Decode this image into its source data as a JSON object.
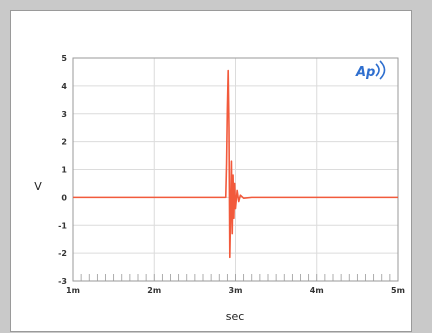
{
  "chart_data": {
    "type": "line",
    "title": "",
    "xlabel": "sec",
    "ylabel": "V",
    "xlim": [
      0.001,
      0.005
    ],
    "ylim": [
      -3,
      5
    ],
    "x_ticks": [
      {
        "value": 0.001,
        "label": "1m"
      },
      {
        "value": 0.002,
        "label": "2m"
      },
      {
        "value": 0.003,
        "label": "3m"
      },
      {
        "value": 0.004,
        "label": "4m"
      },
      {
        "value": 0.005,
        "label": "5m"
      }
    ],
    "y_ticks": [
      {
        "value": 5,
        "label": "5"
      },
      {
        "value": 4,
        "label": "4"
      },
      {
        "value": 3,
        "label": "3"
      },
      {
        "value": 2,
        "label": "2"
      },
      {
        "value": 1,
        "label": "1"
      },
      {
        "value": 0,
        "label": "0"
      },
      {
        "value": -1,
        "label": "-1"
      },
      {
        "value": -2,
        "label": "-2"
      },
      {
        "value": -3,
        "label": "-3"
      }
    ],
    "grid": true,
    "logo": "Ap",
    "colors": {
      "series": "#f25a3c",
      "grid": "#dcdcdc",
      "axis": "#9a9a9a",
      "logo": "#2f6fcf"
    },
    "series": [
      {
        "x": [
          0.001,
          0.0028,
          0.00288,
          0.00289,
          0.0029,
          0.00291,
          0.00292,
          0.00293,
          0.00294,
          0.00295,
          0.00296,
          0.00297,
          0.00298,
          0.00299,
          0.003,
          0.00302,
          0.00304,
          0.00306,
          0.0031,
          0.0032,
          0.005
        ],
        "y": [
          0,
          0,
          0,
          1.2,
          3.2,
          4.55,
          2.5,
          -2.15,
          -0.6,
          1.3,
          -1.3,
          0.8,
          -0.75,
          0.5,
          -0.4,
          0.25,
          -0.15,
          0.08,
          -0.03,
          0,
          0
        ]
      }
    ]
  }
}
